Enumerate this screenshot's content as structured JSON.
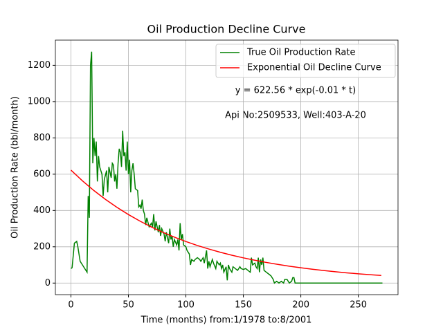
{
  "chart_data": {
    "type": "line",
    "title": "Oil Production Decline Curve",
    "xlabel": "Time (months) from:1/1978 to:8/2001",
    "ylabel": "Oil Production Rate (bbl/month)",
    "annotations": [
      "y = 622.56 * exp(-0.01 * t)",
      "Api No:2509533, Well:403-A-20"
    ],
    "xlim": [
      -13.55,
      284.55
    ],
    "ylim": [
      -63.75,
      1338.75
    ],
    "xticks": [
      0,
      50,
      100,
      150,
      200,
      250
    ],
    "yticks": [
      0,
      200,
      400,
      600,
      800,
      1000,
      1200
    ],
    "grid": true,
    "legend": "upper right",
    "series": [
      {
        "name": "True Oil Production Rate",
        "color": "#008000",
        "x": [
          0,
          1,
          3,
          5,
          6,
          8,
          10,
          12,
          14,
          15,
          16,
          17,
          18,
          19,
          20,
          21,
          22,
          23,
          24,
          25,
          27,
          28,
          29,
          31,
          32,
          33,
          35,
          36,
          37,
          38,
          39,
          40,
          41,
          42,
          43,
          44,
          45,
          46,
          47,
          48,
          49,
          50,
          51,
          52,
          53,
          54,
          55,
          56,
          58,
          59,
          60,
          61,
          62,
          63,
          64,
          65,
          66,
          68,
          70,
          71,
          72,
          73,
          74,
          76,
          77,
          78,
          79,
          81,
          82,
          83,
          85,
          86,
          87,
          88,
          89,
          90,
          92,
          93,
          94,
          95,
          96,
          97,
          98,
          100,
          101,
          103,
          104,
          105,
          107,
          108,
          110,
          112,
          113,
          115,
          116,
          118,
          119,
          120,
          121,
          123,
          124,
          126,
          127,
          129,
          130,
          131,
          132,
          133,
          135,
          136,
          137,
          138,
          140,
          141,
          143,
          145,
          147,
          148,
          150,
          152,
          154,
          156,
          157,
          158,
          160,
          161,
          162,
          163,
          164,
          165,
          166,
          167,
          168,
          170,
          172,
          174,
          176,
          177,
          179,
          181,
          183,
          185,
          186,
          188,
          190,
          192,
          193,
          194,
          195,
          196,
          271
        ],
        "values": [
          80,
          85,
          220,
          230,
          200,
          120,
          100,
          80,
          60,
          480,
          360,
          1200,
          1275,
          660,
          800,
          700,
          780,
          560,
          700,
          640,
          600,
          480,
          570,
          620,
          500,
          640,
          580,
          660,
          650,
          560,
          600,
          520,
          660,
          740,
          720,
          640,
          840,
          700,
          720,
          620,
          780,
          600,
          680,
          500,
          620,
          660,
          600,
          520,
          510,
          420,
          430,
          410,
          460,
          400,
          380,
          320,
          360,
          310,
          330,
          310,
          380,
          290,
          340,
          280,
          320,
          260,
          300,
          270,
          230,
          280,
          220,
          300,
          240,
          260,
          200,
          240,
          210,
          240,
          180,
          330,
          240,
          270,
          210,
          200,
          180,
          160,
          100,
          130,
          120,
          130,
          140,
          130,
          120,
          140,
          110,
          180,
          80,
          120,
          90,
          130,
          110,
          80,
          120,
          100,
          110,
          80,
          100,
          60,
          90,
          15,
          100,
          80,
          60,
          90,
          80,
          70,
          90,
          80,
          75,
          80,
          70,
          60,
          140,
          100,
          110,
          90,
          80,
          140,
          60,
          130,
          100,
          140,
          70,
          60,
          50,
          40,
          20,
          0,
          10,
          0,
          10,
          0,
          20,
          20,
          0,
          10,
          30,
          30,
          0,
          0,
          0
        ]
      },
      {
        "name": "Exponential Oil Decline Curve",
        "color": "#ff0000",
        "x": [
          0,
          10,
          20,
          30,
          40,
          50,
          60,
          70,
          80,
          90,
          100,
          110,
          120,
          130,
          140,
          150,
          160,
          170,
          180,
          190,
          200,
          210,
          220,
          230,
          240,
          250,
          260,
          270
        ],
        "values": [
          622.56,
          563.3,
          509.7,
          461.2,
          417.3,
          377.6,
          341.7,
          309.1,
          279.7,
          253.1,
          229.0,
          207.2,
          187.5,
          169.7,
          153.5,
          138.9,
          125.7,
          113.7,
          102.9,
          93.1,
          84.3,
          76.2,
          69.0,
          62.4,
          56.5,
          51.1,
          46.2,
          41.8
        ]
      }
    ]
  }
}
